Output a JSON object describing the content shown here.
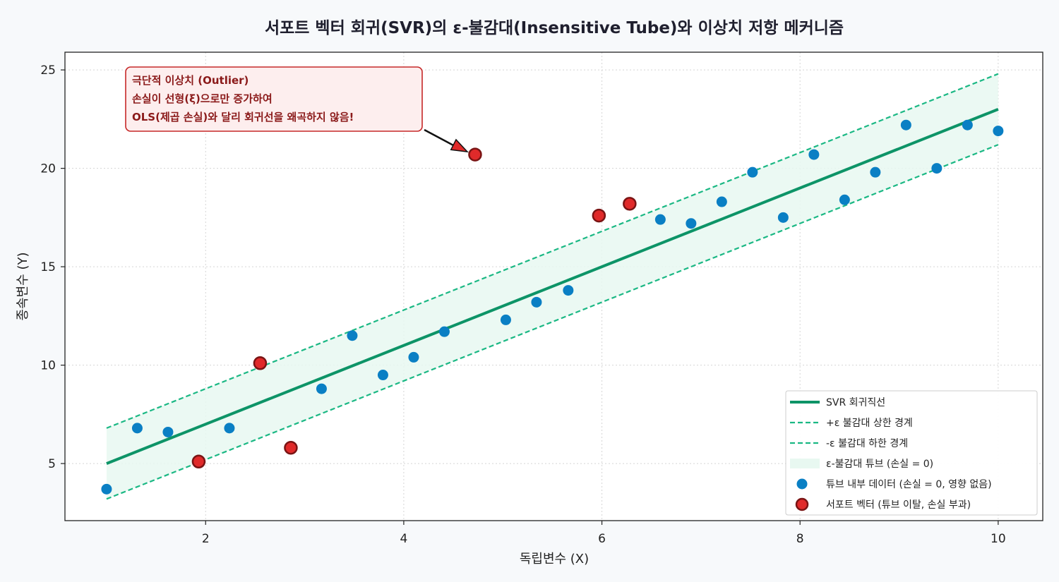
{
  "chart_data": {
    "type": "scatter",
    "title": "서포트 벡터 회귀(SVR)의 ε-불감대(Insensitive Tube)와 이상치 저항 메커니즘",
    "xlabel": "독립변수 (X)",
    "ylabel": "종속변수 (Y)",
    "xlim": [
      0.58,
      10.45
    ],
    "ylim": [
      2.1,
      25.9
    ],
    "xticks": [
      2,
      4,
      6,
      8,
      10
    ],
    "yticks": [
      5,
      10,
      15,
      20,
      25
    ],
    "grid": true,
    "legend_position": "lower-right",
    "regression_line": {
      "name": "SVR 회귀직선",
      "x": [
        1,
        10
      ],
      "y": [
        5.0,
        23.0
      ],
      "color": "#0d9467"
    },
    "epsilon": 1.8,
    "upper_boundary": {
      "name": "+ε 불감대 상한 경계",
      "color": "#1bb884"
    },
    "lower_boundary": {
      "name": "-ε 불감대 하한 경계",
      "color": "#1bb884"
    },
    "tube": {
      "name": "ε-불감대 튜브 (손실 = 0)",
      "color": "#e8f8f1"
    },
    "series": [
      {
        "name": "튜브 내부 데이터 (손실 = 0, 영향 없음)",
        "color": "#0a7fc4",
        "points": [
          [
            1.0,
            3.7
          ],
          [
            1.31,
            6.8
          ],
          [
            1.62,
            6.6
          ],
          [
            2.24,
            6.8
          ],
          [
            3.17,
            8.8
          ],
          [
            3.48,
            11.5
          ],
          [
            3.79,
            9.5
          ],
          [
            4.1,
            10.4
          ],
          [
            4.41,
            11.7
          ],
          [
            5.03,
            12.3
          ],
          [
            5.34,
            13.2
          ],
          [
            5.66,
            13.8
          ],
          [
            6.59,
            17.4
          ],
          [
            6.9,
            17.2
          ],
          [
            7.21,
            18.3
          ],
          [
            7.52,
            19.8
          ],
          [
            7.83,
            17.5
          ],
          [
            8.14,
            20.7
          ],
          [
            8.45,
            18.4
          ],
          [
            8.76,
            19.8
          ],
          [
            9.07,
            22.2
          ],
          [
            9.38,
            20.0
          ],
          [
            9.69,
            22.2
          ],
          [
            10.0,
            21.9
          ]
        ]
      },
      {
        "name": "서포트 벡터 (튜브 이탈, 손실 부과)",
        "color": "#e02a2a",
        "edge": "#7a1414",
        "points": [
          [
            1.93,
            5.1
          ],
          [
            2.55,
            10.1
          ],
          [
            2.86,
            5.8
          ],
          [
            4.72,
            20.7
          ],
          [
            5.97,
            17.6
          ],
          [
            6.28,
            18.2
          ]
        ]
      }
    ],
    "annotation": {
      "lines": [
        "극단적 이상치 (Outlier)",
        "손실이 선형(ξ)으로만 증가하여",
        "OLS(제곱 손실)와 달리 회귀선을 왜곡하지 않음!"
      ],
      "target": [
        4.72,
        20.7
      ],
      "box_color": "#fdeeee",
      "border_color": "#c62828"
    }
  }
}
